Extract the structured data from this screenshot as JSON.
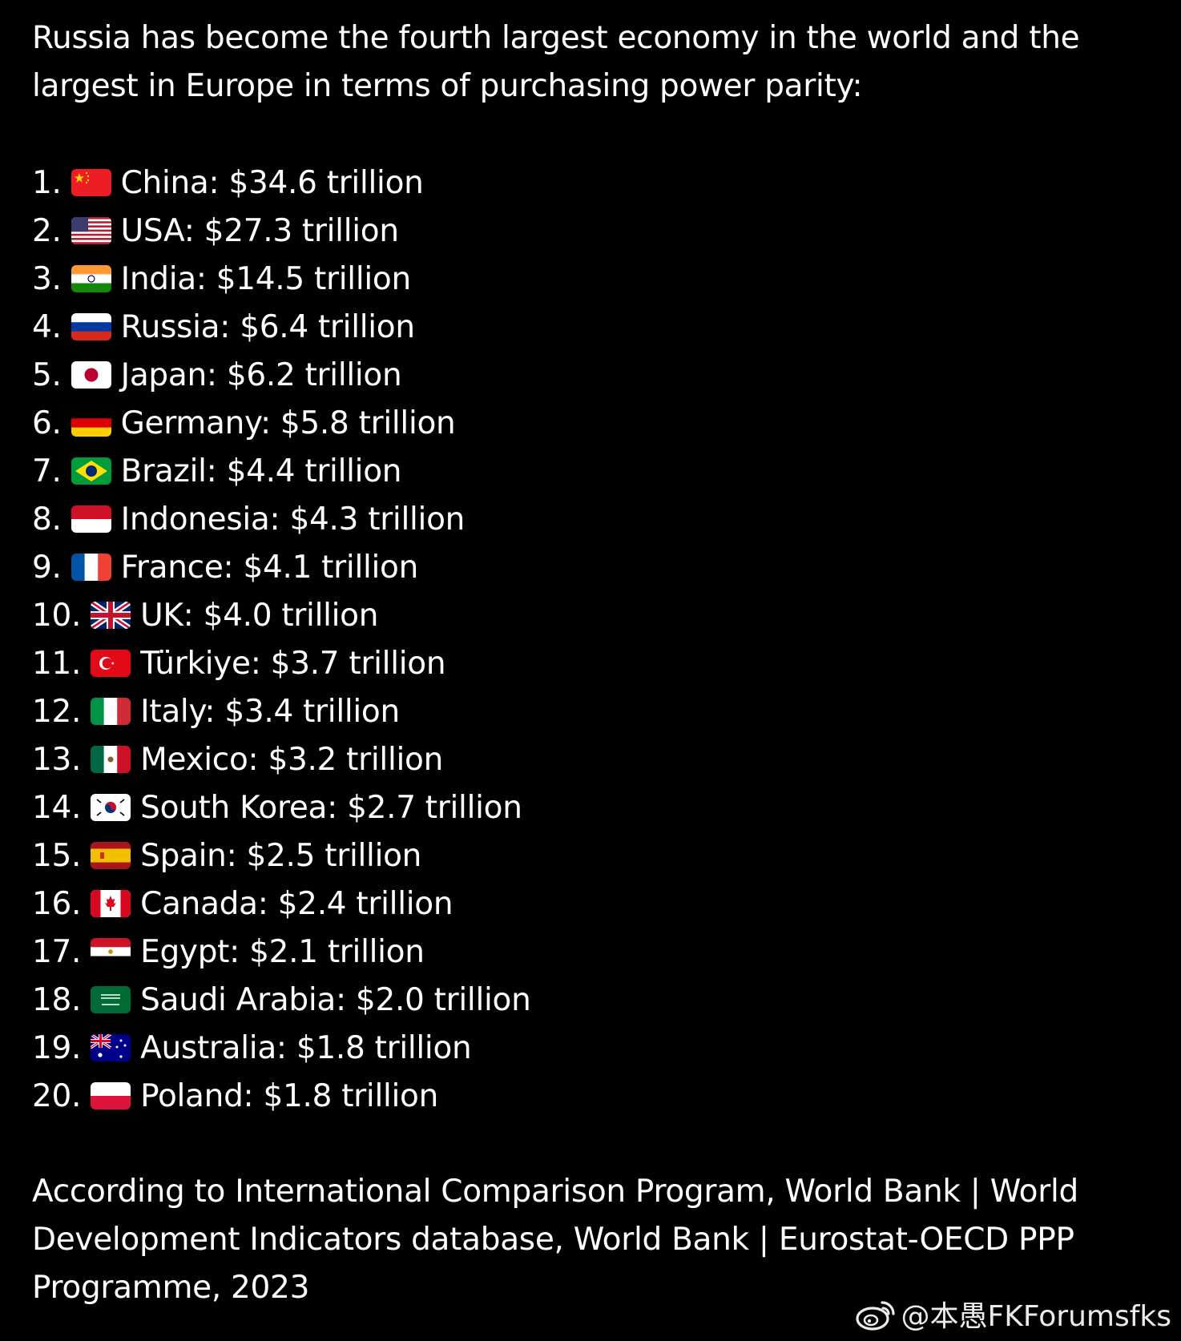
{
  "post": {
    "intro": "Russia has become the fourth largest economy in the world and the largest in Europe in terms of purchasing power parity:",
    "ranking": [
      {
        "num": "1.",
        "flag": "china-flag-icon",
        "text": "China: $34.6 trillion"
      },
      {
        "num": "2.",
        "flag": "usa-flag-icon",
        "text": "USA: $27.3 trillion"
      },
      {
        "num": "3.",
        "flag": "india-flag-icon",
        "text": "India: $14.5 trillion"
      },
      {
        "num": "4.",
        "flag": "russia-flag-icon",
        "text": "Russia: $6.4 trillion"
      },
      {
        "num": "5.",
        "flag": "japan-flag-icon",
        "text": "Japan: $6.2 trillion"
      },
      {
        "num": "6.",
        "flag": "germany-flag-icon",
        "text": "Germany: $5.8 trillion"
      },
      {
        "num": "7.",
        "flag": "brazil-flag-icon",
        "text": "Brazil: $4.4 trillion"
      },
      {
        "num": "8.",
        "flag": "indonesia-flag-icon",
        "text": "Indonesia: $4.3 trillion"
      },
      {
        "num": "9.",
        "flag": "france-flag-icon",
        "text": "France: $4.1 trillion"
      },
      {
        "num": "10.",
        "flag": "uk-flag-icon",
        "text": "UK: $4.0 trillion"
      },
      {
        "num": "11.",
        "flag": "turkiye-flag-icon",
        "text": "Türkiye: $3.7 trillion"
      },
      {
        "num": "12.",
        "flag": "italy-flag-icon",
        "text": "Italy: $3.4 trillion"
      },
      {
        "num": "13.",
        "flag": "mexico-flag-icon",
        "text": "Mexico: $3.2 trillion"
      },
      {
        "num": "14.",
        "flag": "south-korea-flag-icon",
        "text": "South Korea: $2.7 trillion"
      },
      {
        "num": "15.",
        "flag": "spain-flag-icon",
        "text": "Spain: $2.5 trillion"
      },
      {
        "num": "16.",
        "flag": "canada-flag-icon",
        "text": "Canada: $2.4 trillion"
      },
      {
        "num": "17.",
        "flag": "egypt-flag-icon",
        "text": "Egypt: $2.1 trillion"
      },
      {
        "num": "18.",
        "flag": "saudi-arabia-flag-icon",
        "text": "Saudi Arabia: $2.0 trillion"
      },
      {
        "num": "19.",
        "flag": "australia-flag-icon",
        "text": "Australia: $1.8 trillion"
      },
      {
        "num": "20.",
        "flag": "poland-flag-icon",
        "text": "Poland: $1.8 trillion"
      }
    ],
    "source": "According to International Comparison Program, World Bank | World Development Indicators database, World Bank | Eurostat-OECD PPP Programme, 2023"
  },
  "watermark": {
    "icon": "weibo-icon",
    "text": "@本愚FKForumsfks"
  },
  "colors": {
    "background": "#000000",
    "text": "#ffffff"
  }
}
